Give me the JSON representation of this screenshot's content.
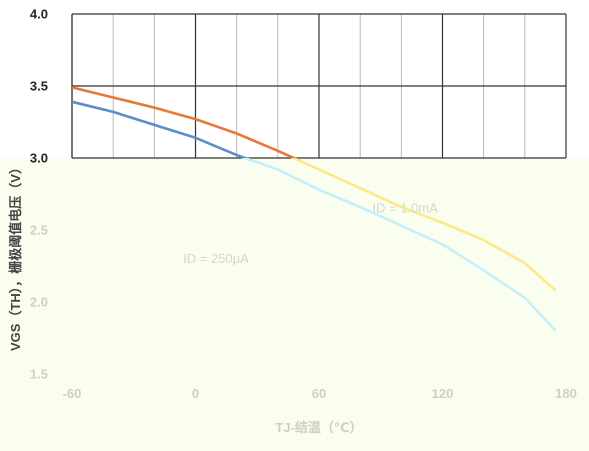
{
  "chart_data": {
    "type": "line",
    "title": "",
    "xlabel": "TJ-结温（℃）",
    "ylabel": "VGS（TH），栅极阈值电压（V）",
    "xlim": [
      -60,
      180
    ],
    "ylim": [
      1.5,
      4.0
    ],
    "x_ticks": [
      "-60",
      "0",
      "60",
      "120",
      "180"
    ],
    "y_ticks": [
      "1.5",
      "2.0",
      "2.5",
      "3.0",
      "3.5",
      "4.0"
    ],
    "grid": true,
    "colors": {
      "id_1ma": "#e8773a",
      "id_1ma_faded": "#fde88a",
      "id_250ua": "#5b8ec8",
      "id_250ua_faded": "#c4f0fb"
    },
    "series": [
      {
        "name": "I_D = 1.0mA",
        "label": "ID = 1.0mA",
        "x": [
          -60,
          -40,
          -20,
          0,
          20,
          40,
          60,
          80,
          100,
          120,
          140,
          160,
          175
        ],
        "y": [
          3.49,
          3.42,
          3.35,
          3.27,
          3.17,
          3.05,
          2.92,
          2.79,
          2.66,
          2.55,
          2.43,
          2.27,
          2.08
        ]
      },
      {
        "name": "I_D = 250μA",
        "label": "ID = 250μA",
        "x": [
          -60,
          -40,
          -20,
          0,
          20,
          40,
          60,
          80,
          100,
          120,
          140,
          160,
          175
        ],
        "y": [
          3.39,
          3.32,
          3.23,
          3.14,
          3.02,
          2.92,
          2.78,
          2.66,
          2.53,
          2.4,
          2.22,
          2.03,
          1.8
        ]
      }
    ]
  }
}
